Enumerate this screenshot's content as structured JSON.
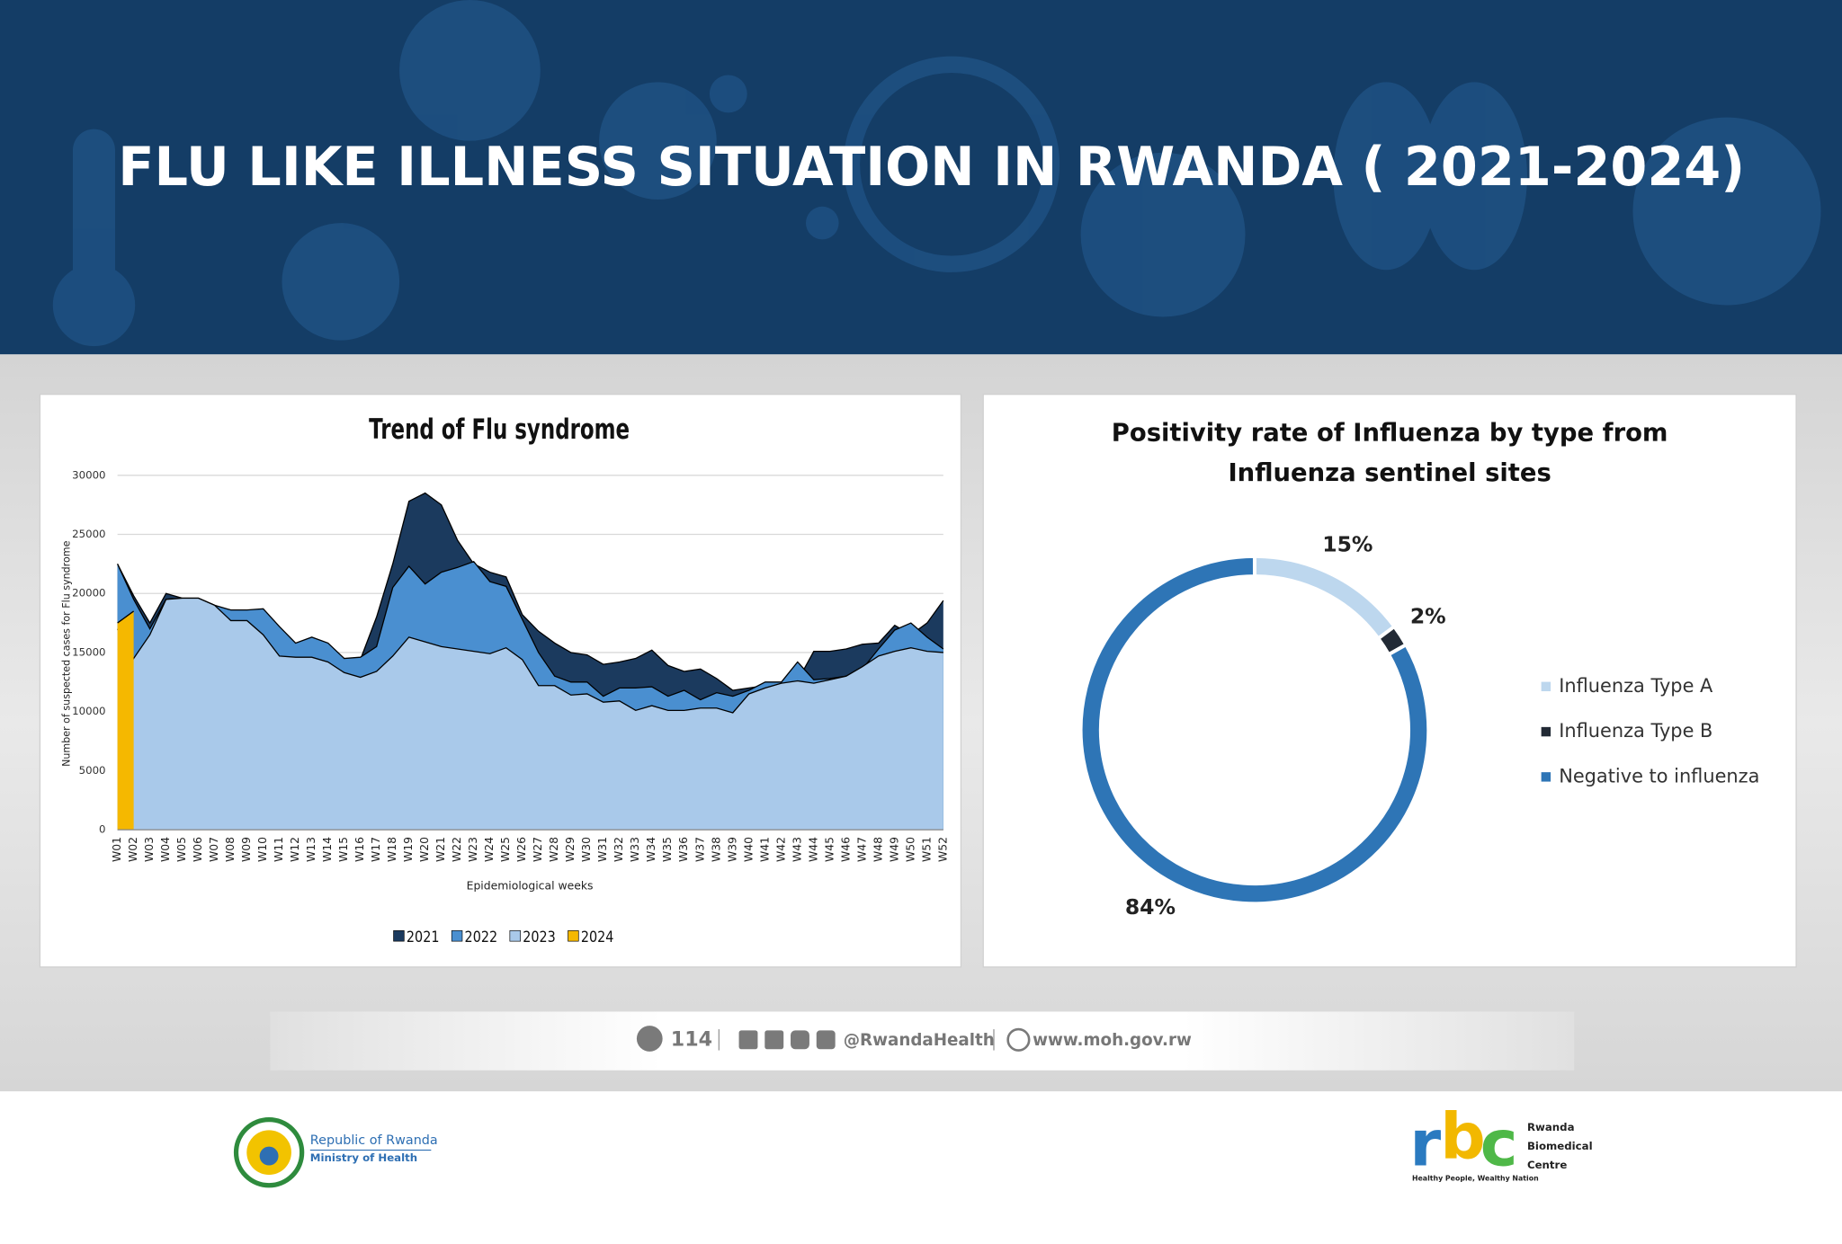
{
  "header": {
    "title": "FLU LIKE ILLNESS SITUATION IN RWANDA ( 2021-2024)"
  },
  "chart_data": [
    {
      "type": "area",
      "title": "Trend of Flu syndrome",
      "x_label": "Epidemiological weeks",
      "y_label": "Number of suspected cases for Flu syndrome",
      "categories": [
        "W01",
        "W02",
        "W03",
        "W04",
        "W05",
        "W06",
        "W07",
        "W08",
        "W09",
        "W10",
        "W11",
        "W12",
        "W13",
        "W14",
        "W15",
        "W16",
        "W17",
        "W18",
        "W19",
        "W20",
        "W21",
        "W22",
        "W23",
        "W24",
        "W25",
        "W26",
        "W27",
        "W28",
        "W29",
        "W30",
        "W31",
        "W32",
        "W33",
        "W34",
        "W35",
        "W36",
        "W37",
        "W38",
        "W39",
        "W40",
        "W41",
        "W42",
        "W43",
        "W44",
        "W45",
        "W46",
        "W47",
        "W48",
        "W49",
        "W50",
        "W51",
        "W52"
      ],
      "series": [
        {
          "name": "2021",
          "color": "#1b3a5e",
          "values": [
            22500,
            19800,
            17500,
            20000,
            19600,
            19600,
            19000,
            18000,
            18000,
            17500,
            16000,
            15000,
            15500,
            15000,
            14300,
            14400,
            18000,
            22500,
            27800,
            28500,
            27500,
            24500,
            22500,
            21800,
            21400,
            18200,
            16800,
            15800,
            15000,
            14800,
            14000,
            14200,
            14500,
            15200,
            13900,
            13400,
            13600,
            12800,
            11800,
            12000,
            12200,
            12300,
            12600,
            15100,
            15100,
            15300,
            15700,
            15800,
            17300,
            16500,
            17500,
            19400
          ]
        },
        {
          "name": "2022",
          "color": "#4a8fd0",
          "values": [
            22500,
            19500,
            17000,
            19500,
            19600,
            19600,
            19000,
            18600,
            18600,
            18700,
            17200,
            15800,
            16300,
            15800,
            14500,
            14600,
            15500,
            20500,
            22300,
            20800,
            21800,
            22200,
            22700,
            21000,
            20600,
            17800,
            15000,
            13000,
            12500,
            12500,
            11300,
            12000,
            12000,
            12100,
            11300,
            11800,
            11000,
            11600,
            11300,
            11800,
            12500,
            12500,
            14200,
            12700,
            12800,
            13000,
            13600,
            15300,
            16900,
            17500,
            16300,
            15300
          ]
        },
        {
          "name": "2023",
          "color": "#a9c9ea",
          "values": [
            17000,
            14500,
            16500,
            19500,
            19600,
            19600,
            19000,
            17700,
            17700,
            16500,
            14700,
            14600,
            14600,
            14200,
            13300,
            12900,
            13400,
            14700,
            16300,
            15900,
            15500,
            15300,
            15100,
            14900,
            15400,
            14400,
            12200,
            12200,
            11400,
            11500,
            10800,
            10900,
            10100,
            10500,
            10100,
            10100,
            10300,
            10300,
            9900,
            11500,
            12000,
            12400,
            12600,
            12400,
            12700,
            13000,
            13800,
            14700,
            15100,
            15400,
            15100,
            15000
          ]
        },
        {
          "name": "2024",
          "color": "#f5b800",
          "values": [
            17500,
            18500,
            null,
            null,
            null,
            null,
            null,
            null,
            null,
            null,
            null,
            null,
            null,
            null,
            null,
            null,
            null,
            null,
            null,
            null,
            null,
            null,
            null,
            null,
            null,
            null,
            null,
            null,
            null,
            null,
            null,
            null,
            null,
            null,
            null,
            null,
            null,
            null,
            null,
            null,
            null,
            null,
            null,
            null,
            null,
            null,
            null,
            null,
            null,
            null,
            null,
            null
          ]
        }
      ],
      "ylim": [
        0,
        30000
      ],
      "yticks": [
        0,
        5000,
        10000,
        15000,
        20000,
        25000,
        30000
      ],
      "grid": true,
      "legend": "bottom"
    },
    {
      "type": "donut",
      "title": [
        "Positivity rate of Influenza by type from",
        "Influenza sentinel sites"
      ],
      "categories": [
        "Influenza Type A",
        "Influenza Type B",
        "Negative to influenza"
      ],
      "values": [
        15,
        2,
        84
      ],
      "value_labels": [
        "15%",
        "2%",
        "84%"
      ],
      "colors": [
        "#bdd7ee",
        "#222a35",
        "#2e75b6"
      ],
      "legend": "right"
    }
  ],
  "footer": {
    "phone": "114",
    "social": "@RwandaHealth",
    "website": "www.moh.gov.rw"
  },
  "logos": {
    "moh": [
      "Republic of Rwanda",
      "Ministry of Health"
    ],
    "rbc": {
      "letters": [
        "r",
        "b",
        "c"
      ],
      "name": [
        "Rwanda",
        "Biomedical",
        "Centre"
      ],
      "tagline": "Healthy People, Wealthy Nation"
    }
  }
}
